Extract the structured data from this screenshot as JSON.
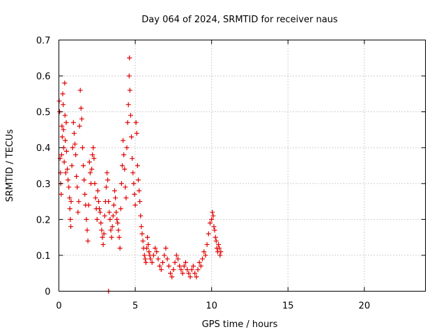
{
  "chart_data": {
    "type": "scatter",
    "title": "Day 064 of 2024, SRMTID for receiver naus",
    "xlabel": "GPS time / hours",
    "ylabel": "SRMTID / TECUs",
    "xlim": [
      0,
      24
    ],
    "ylim": [
      0,
      0.7
    ],
    "xticks": [
      0,
      5,
      10,
      15,
      20
    ],
    "xtick_labels": [
      "0",
      "5",
      "10",
      "15",
      "20"
    ],
    "yticks": [
      0,
      0.1,
      0.2,
      0.3,
      0.4,
      0.5,
      0.6,
      0.7
    ],
    "ytick_labels": [
      "0",
      "0.1",
      "0.2",
      "0.3",
      "0.4",
      "0.5",
      "0.6",
      "0.7"
    ],
    "grid": true,
    "marker": "+",
    "series": [
      {
        "name": "SRMTID",
        "color": "#e00000",
        "points": [
          [
            0.02,
            0.53
          ],
          [
            0.05,
            0.5
          ],
          [
            0.08,
            0.37
          ],
          [
            0.1,
            0.33
          ],
          [
            0.12,
            0.3
          ],
          [
            0.15,
            0.27
          ],
          [
            0.18,
            0.38
          ],
          [
            0.2,
            0.46
          ],
          [
            0.22,
            0.43
          ],
          [
            0.25,
            0.55
          ],
          [
            0.28,
            0.52
          ],
          [
            0.3,
            0.45
          ],
          [
            0.32,
            0.4
          ],
          [
            0.35,
            0.36
          ],
          [
            0.38,
            0.58
          ],
          [
            0.4,
            0.49
          ],
          [
            0.42,
            0.42
          ],
          [
            0.45,
            0.33
          ],
          [
            0.48,
            0.47
          ],
          [
            0.5,
            0.39
          ],
          [
            0.55,
            0.34
          ],
          [
            0.6,
            0.31
          ],
          [
            0.65,
            0.29
          ],
          [
            0.7,
            0.26
          ],
          [
            0.72,
            0.23
          ],
          [
            0.75,
            0.2
          ],
          [
            0.78,
            0.18
          ],
          [
            0.8,
            0.25
          ],
          [
            0.85,
            0.35
          ],
          [
            0.9,
            0.4
          ],
          [
            0.95,
            0.47
          ],
          [
            1.0,
            0.44
          ],
          [
            1.05,
            0.41
          ],
          [
            1.1,
            0.38
          ],
          [
            1.15,
            0.32
          ],
          [
            1.2,
            0.29
          ],
          [
            1.25,
            0.22
          ],
          [
            1.3,
            0.25
          ],
          [
            1.35,
            0.46
          ],
          [
            1.4,
            0.56
          ],
          [
            1.45,
            0.51
          ],
          [
            1.5,
            0.48
          ],
          [
            1.55,
            0.4
          ],
          [
            1.6,
            0.35
          ],
          [
            1.65,
            0.31
          ],
          [
            1.7,
            0.27
          ],
          [
            1.75,
            0.24
          ],
          [
            1.8,
            0.2
          ],
          [
            1.85,
            0.17
          ],
          [
            1.9,
            0.14
          ],
          [
            1.95,
            0.24
          ],
          [
            2.0,
            0.36
          ],
          [
            2.05,
            0.33
          ],
          [
            2.1,
            0.3
          ],
          [
            2.15,
            0.34
          ],
          [
            2.2,
            0.38
          ],
          [
            2.25,
            0.4
          ],
          [
            2.3,
            0.37
          ],
          [
            2.35,
            0.3
          ],
          [
            2.4,
            0.26
          ],
          [
            2.45,
            0.23
          ],
          [
            2.5,
            0.2
          ],
          [
            2.55,
            0.28
          ],
          [
            2.6,
            0.25
          ],
          [
            2.65,
            0.23
          ],
          [
            2.7,
            0.22
          ],
          [
            2.75,
            0.19
          ],
          [
            2.8,
            0.17
          ],
          [
            2.85,
            0.15
          ],
          [
            2.9,
            0.13
          ],
          [
            2.95,
            0.16
          ],
          [
            3.0,
            0.21
          ],
          [
            3.05,
            0.25
          ],
          [
            3.1,
            0.29
          ],
          [
            3.15,
            0.33
          ],
          [
            3.2,
            0.31
          ],
          [
            3.25,
            0.25
          ],
          [
            3.3,
            0.22
          ],
          [
            3.35,
            0.2
          ],
          [
            3.4,
            0.17
          ],
          [
            3.45,
            0.15
          ],
          [
            3.5,
            0.18
          ],
          [
            3.55,
            0.21
          ],
          [
            3.6,
            0.24
          ],
          [
            3.65,
            0.28
          ],
          [
            3.7,
            0.26
          ],
          [
            3.75,
            0.22
          ],
          [
            3.8,
            0.2
          ],
          [
            3.85,
            0.19
          ],
          [
            3.9,
            0.17
          ],
          [
            3.95,
            0.15
          ],
          [
            4.0,
            0.12
          ],
          [
            4.05,
            0.23
          ],
          [
            4.1,
            0.3
          ],
          [
            4.15,
            0.35
          ],
          [
            4.2,
            0.42
          ],
          [
            4.25,
            0.38
          ],
          [
            4.3,
            0.34
          ],
          [
            4.35,
            0.29
          ],
          [
            4.4,
            0.26
          ],
          [
            4.45,
            0.4
          ],
          [
            4.5,
            0.47
          ],
          [
            4.55,
            0.52
          ],
          [
            4.6,
            0.6
          ],
          [
            4.62,
            0.65
          ],
          [
            4.65,
            0.56
          ],
          [
            4.7,
            0.49
          ],
          [
            4.75,
            0.43
          ],
          [
            4.8,
            0.37
          ],
          [
            4.85,
            0.33
          ],
          [
            4.9,
            0.3
          ],
          [
            4.95,
            0.27
          ],
          [
            5.0,
            0.24
          ],
          [
            5.05,
            0.47
          ],
          [
            5.1,
            0.44
          ],
          [
            5.15,
            0.35
          ],
          [
            5.2,
            0.31
          ],
          [
            5.25,
            0.28
          ],
          [
            5.3,
            0.25
          ],
          [
            5.35,
            0.21
          ],
          [
            5.4,
            0.18
          ],
          [
            5.45,
            0.16
          ],
          [
            5.5,
            0.14
          ],
          [
            5.55,
            0.12
          ],
          [
            5.6,
            0.1
          ],
          [
            5.65,
            0.09
          ],
          [
            5.7,
            0.08
          ],
          [
            5.75,
            0.12
          ],
          [
            5.8,
            0.15
          ],
          [
            5.85,
            0.13
          ],
          [
            5.9,
            0.11
          ],
          [
            5.95,
            0.1
          ],
          [
            6.0,
            0.09
          ],
          [
            6.1,
            0.08
          ],
          [
            6.2,
            0.1
          ],
          [
            6.3,
            0.12
          ],
          [
            6.4,
            0.11
          ],
          [
            6.5,
            0.09
          ],
          [
            6.6,
            0.07
          ],
          [
            6.7,
            0.06
          ],
          [
            6.8,
            0.08
          ],
          [
            6.9,
            0.1
          ],
          [
            7.0,
            0.12
          ],
          [
            7.1,
            0.09
          ],
          [
            7.2,
            0.07
          ],
          [
            7.3,
            0.05
          ],
          [
            7.4,
            0.04
          ],
          [
            7.5,
            0.06
          ],
          [
            7.6,
            0.08
          ],
          [
            7.7,
            0.1
          ],
          [
            7.8,
            0.09
          ],
          [
            7.9,
            0.07
          ],
          [
            8.0,
            0.06
          ],
          [
            8.1,
            0.05
          ],
          [
            8.2,
            0.07
          ],
          [
            8.3,
            0.08
          ],
          [
            8.4,
            0.06
          ],
          [
            8.5,
            0.05
          ],
          [
            8.6,
            0.04
          ],
          [
            8.7,
            0.06
          ],
          [
            8.8,
            0.07
          ],
          [
            8.9,
            0.05
          ],
          [
            9.0,
            0.04
          ],
          [
            9.1,
            0.06
          ],
          [
            9.2,
            0.08
          ],
          [
            9.3,
            0.07
          ],
          [
            9.4,
            0.09
          ],
          [
            9.5,
            0.11
          ],
          [
            9.6,
            0.1
          ],
          [
            9.7,
            0.13
          ],
          [
            9.8,
            0.16
          ],
          [
            9.9,
            0.19
          ],
          [
            10.0,
            0.2
          ],
          [
            10.05,
            0.22
          ],
          [
            10.1,
            0.21
          ],
          [
            10.15,
            0.18
          ],
          [
            10.2,
            0.17
          ],
          [
            10.25,
            0.15
          ],
          [
            10.3,
            0.14
          ],
          [
            10.35,
            0.12
          ],
          [
            10.4,
            0.11
          ],
          [
            10.45,
            0.13
          ],
          [
            10.5,
            0.12
          ],
          [
            10.55,
            0.1
          ],
          [
            10.6,
            0.11
          ],
          [
            3.25,
            0.0
          ]
        ]
      }
    ]
  }
}
